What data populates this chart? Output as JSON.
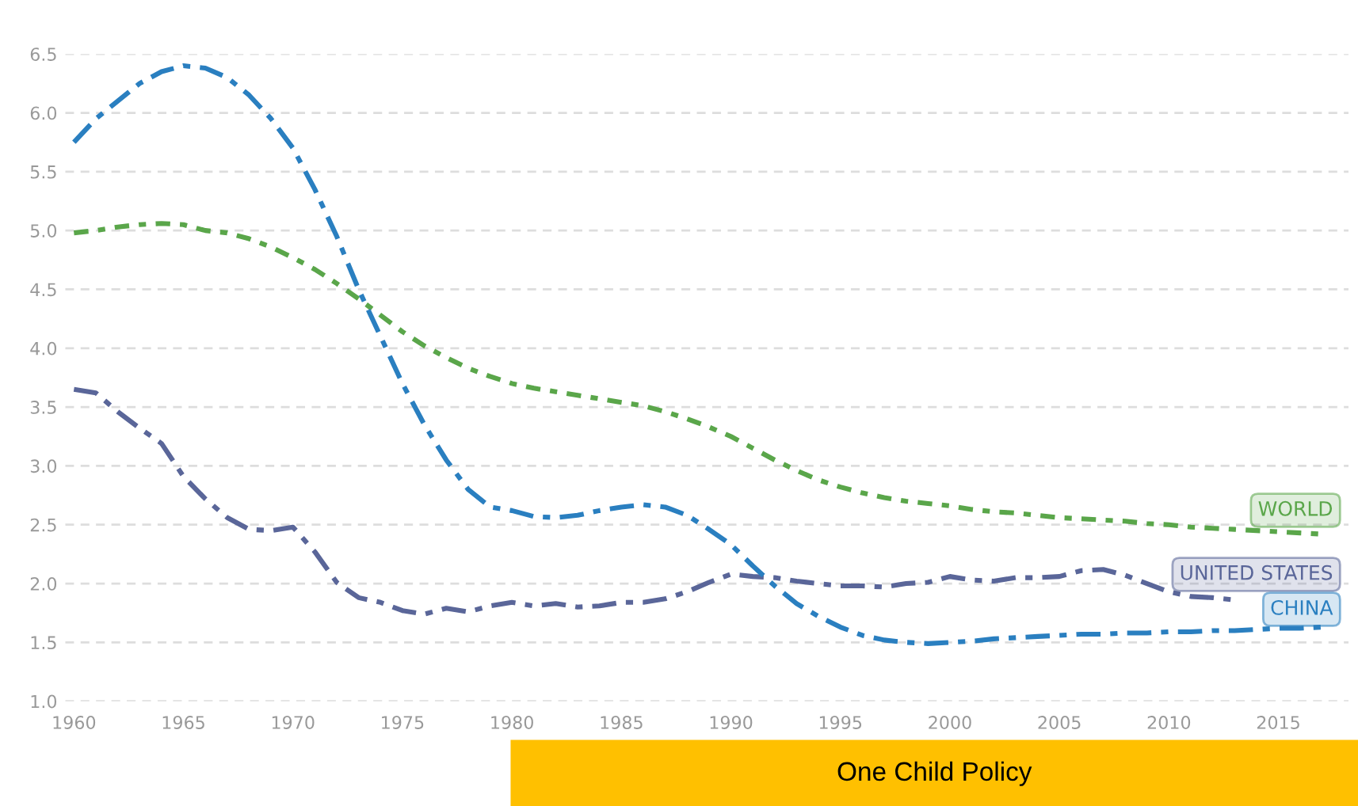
{
  "chart_data": {
    "type": "line",
    "x": [
      1960,
      1961,
      1962,
      1963,
      1964,
      1965,
      1966,
      1967,
      1968,
      1969,
      1970,
      1971,
      1972,
      1973,
      1974,
      1975,
      1976,
      1977,
      1978,
      1979,
      1980,
      1981,
      1982,
      1983,
      1984,
      1985,
      1986,
      1987,
      1988,
      1989,
      1990,
      1991,
      1992,
      1993,
      1994,
      1995,
      1996,
      1997,
      1998,
      1999,
      2000,
      2001,
      2002,
      2003,
      2004,
      2005,
      2006,
      2007,
      2008,
      2009,
      2010,
      2011,
      2012,
      2013,
      2014,
      2015,
      2016,
      2017
    ],
    "series": [
      {
        "name": "WORLD",
        "color": "#5aa64a",
        "line_style": "dotted",
        "values": [
          4.98,
          5.0,
          5.03,
          5.05,
          5.06,
          5.05,
          5.0,
          4.98,
          4.93,
          4.86,
          4.77,
          4.67,
          4.55,
          4.42,
          4.28,
          4.14,
          4.02,
          3.92,
          3.83,
          3.76,
          3.7,
          3.66,
          3.63,
          3.6,
          3.57,
          3.54,
          3.51,
          3.46,
          3.4,
          3.33,
          3.25,
          3.15,
          3.05,
          2.96,
          2.88,
          2.82,
          2.77,
          2.73,
          2.7,
          2.68,
          2.66,
          2.63,
          2.61,
          2.6,
          2.58,
          2.56,
          2.55,
          2.54,
          2.53,
          2.51,
          2.5,
          2.48,
          2.47,
          2.46,
          2.45,
          2.44,
          2.43,
          2.42
        ]
      },
      {
        "name": "UNITED STATES",
        "color": "#5a6699",
        "line_style": "dashed",
        "values": [
          3.65,
          3.62,
          3.46,
          3.32,
          3.19,
          2.91,
          2.72,
          2.56,
          2.46,
          2.45,
          2.48,
          2.27,
          2.01,
          1.88,
          1.84,
          1.77,
          1.74,
          1.79,
          1.76,
          1.81,
          1.84,
          1.81,
          1.83,
          1.8,
          1.81,
          1.84,
          1.84,
          1.87,
          1.93,
          2.01,
          2.08,
          2.06,
          2.05,
          2.02,
          2.0,
          1.98,
          1.98,
          1.97,
          2.0,
          2.01,
          2.06,
          2.03,
          2.02,
          2.05,
          2.05,
          2.06,
          2.11,
          2.12,
          2.07,
          2.0,
          1.93,
          1.89,
          1.88,
          1.86,
          null,
          null,
          null,
          null
        ]
      },
      {
        "name": "CHINA",
        "color": "#2a7fc0",
        "line_style": "dashed",
        "values": [
          5.75,
          5.95,
          6.1,
          6.25,
          6.35,
          6.4,
          6.38,
          6.3,
          6.15,
          5.95,
          5.7,
          5.35,
          4.95,
          4.5,
          4.1,
          3.7,
          3.35,
          3.05,
          2.8,
          2.65,
          2.62,
          2.57,
          2.56,
          2.58,
          2.62,
          2.65,
          2.67,
          2.65,
          2.58,
          2.46,
          2.33,
          2.15,
          1.98,
          1.83,
          1.72,
          1.63,
          1.56,
          1.52,
          1.5,
          1.49,
          1.5,
          1.51,
          1.53,
          1.54,
          1.55,
          1.56,
          1.57,
          1.57,
          1.58,
          1.58,
          1.59,
          1.59,
          1.6,
          1.6,
          1.61,
          1.62,
          1.62,
          1.63
        ]
      }
    ],
    "xlim": [
      1959.6,
      2018.2
    ],
    "xticks": [
      1960,
      1965,
      1970,
      1975,
      1980,
      1985,
      1990,
      1995,
      2000,
      2005,
      2010,
      2015
    ],
    "ylim": [
      1.0,
      6.5
    ],
    "yticks": [
      {
        "value": 1.0,
        "label": "1.0"
      },
      {
        "value": 1.5,
        "label": "1.5"
      },
      {
        "value": 2.0,
        "label": "2.0"
      },
      {
        "value": 2.5,
        "label": "2.5"
      },
      {
        "value": 3.0,
        "label": "3.0"
      },
      {
        "value": 3.5,
        "label": "3.5"
      },
      {
        "value": 4.0,
        "label": "4.0"
      },
      {
        "value": 4.5,
        "label": "4.5"
      },
      {
        "value": 5.0,
        "label": "5.0"
      },
      {
        "value": 5.5,
        "label": "5.5"
      },
      {
        "value": 6.0,
        "label": "6.0"
      },
      {
        "value": 6.5,
        "label": "6.5"
      }
    ],
    "grid": "y",
    "annotations": [
      "One Child Policy"
    ]
  }
}
